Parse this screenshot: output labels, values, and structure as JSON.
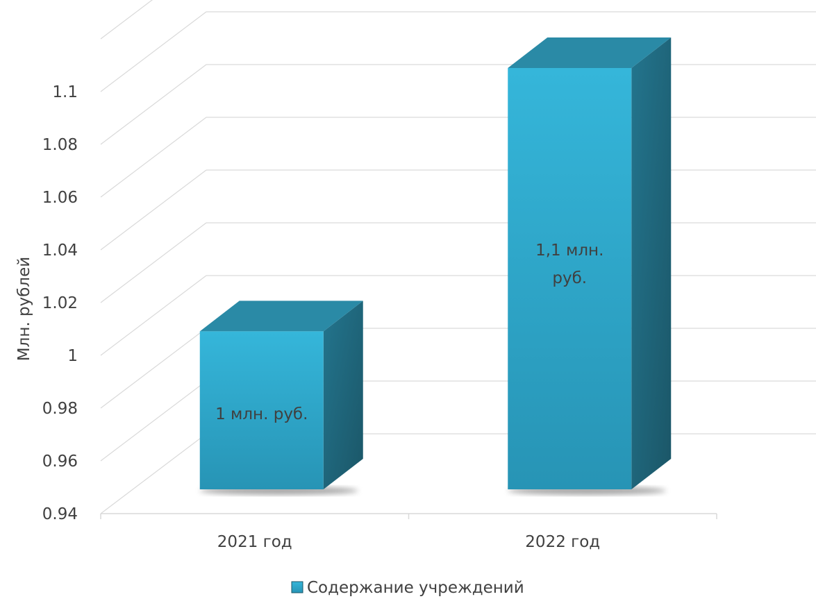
{
  "chart_data": {
    "type": "bar",
    "style": "3d-column",
    "categories": [
      "2021 год",
      "2022 год"
    ],
    "series": [
      {
        "name": "Содержание учреждений",
        "values": [
          1.0,
          1.1
        ],
        "color": "#2BA6C9",
        "data_labels": [
          "1 млн. руб.",
          "1,1 млн. руб."
        ]
      }
    ],
    "ylabel": "Млн. рублей",
    "ylim": [
      0.94,
      1.1
    ],
    "yticks": [
      "0.94",
      "0.96",
      "0.98",
      "1",
      "1.02",
      "1.04",
      "1.06",
      "1.08",
      "1.1"
    ],
    "grid": true,
    "legend": "bottom"
  }
}
